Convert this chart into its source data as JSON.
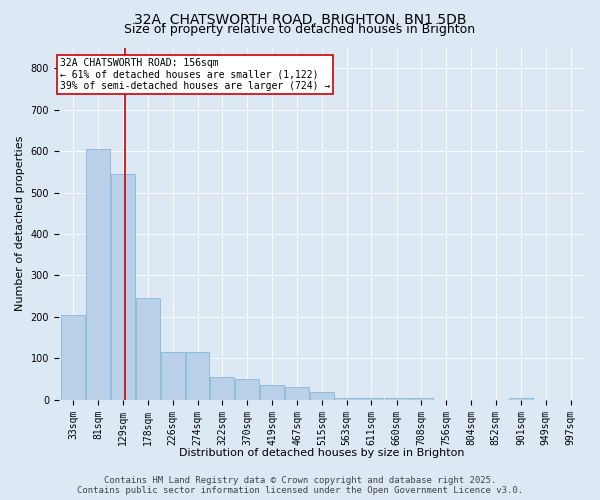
{
  "title1": "32A, CHATSWORTH ROAD, BRIGHTON, BN1 5DB",
  "title2": "Size of property relative to detached houses in Brighton",
  "xlabel": "Distribution of detached houses by size in Brighton",
  "ylabel": "Number of detached properties",
  "bar_edges": [
    33,
    81,
    129,
    178,
    226,
    274,
    322,
    370,
    419,
    467,
    515,
    563,
    611,
    660,
    708,
    756,
    804,
    852,
    901,
    949,
    997
  ],
  "bar_heights": [
    205,
    605,
    545,
    245,
    115,
    115,
    55,
    50,
    35,
    30,
    18,
    5,
    5,
    5,
    5,
    0,
    0,
    0,
    5,
    0,
    0
  ],
  "bar_color": "#b8d0e8",
  "bar_edge_color": "#7aafd4",
  "property_value": 156,
  "red_line_color": "#cc0000",
  "annotation_line1": "32A CHATSWORTH ROAD: 156sqm",
  "annotation_line2": "← 61% of detached houses are smaller (1,122)",
  "annotation_line3": "39% of semi-detached houses are larger (724) →",
  "annotation_box_color": "#ffffff",
  "annotation_box_edge": "#cc0000",
  "ylim": [
    0,
    850
  ],
  "yticks": [
    0,
    100,
    200,
    300,
    400,
    500,
    600,
    700,
    800
  ],
  "background_color": "#dce9f5",
  "footer_line1": "Contains HM Land Registry data © Crown copyright and database right 2025.",
  "footer_line2": "Contains public sector information licensed under the Open Government Licence v3.0.",
  "tick_labels": [
    "33sqm",
    "81sqm",
    "129sqm",
    "178sqm",
    "226sqm",
    "274sqm",
    "322sqm",
    "370sqm",
    "419sqm",
    "467sqm",
    "515sqm",
    "563sqm",
    "611sqm",
    "660sqm",
    "708sqm",
    "756sqm",
    "804sqm",
    "852sqm",
    "901sqm",
    "949sqm",
    "997sqm"
  ],
  "title1_fontsize": 10,
  "title2_fontsize": 9,
  "axis_label_fontsize": 8,
  "tick_fontsize": 7,
  "annotation_fontsize": 7,
  "footer_fontsize": 6.5
}
